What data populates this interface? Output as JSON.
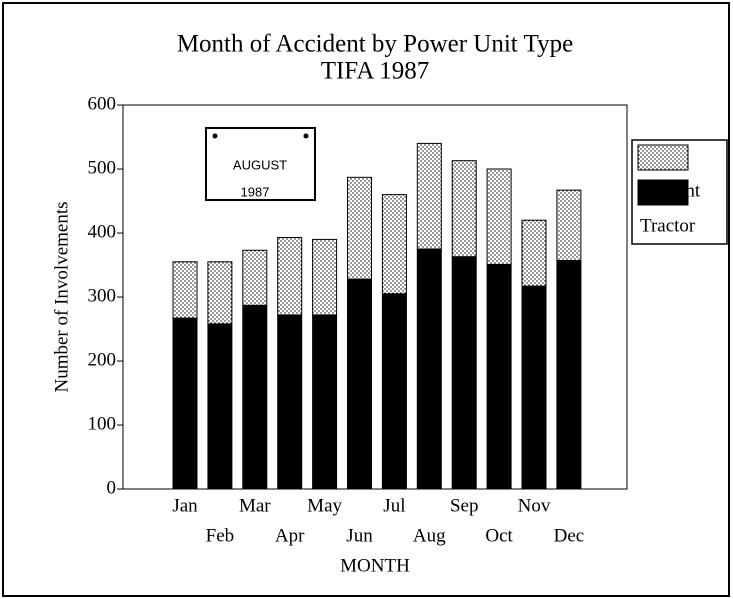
{
  "chart_data": {
    "type": "bar",
    "stacked": true,
    "title": "Month of Accident by Power Unit Type",
    "subtitle": "TIFA 1987",
    "x_label": "MONTH",
    "y_label": "Number of Involvements",
    "categories": [
      "Jan",
      "Feb",
      "Mar",
      "Apr",
      "May",
      "Jun",
      "Jul",
      "Aug",
      "Sep",
      "Oct",
      "Nov",
      "Dec"
    ],
    "series": [
      {
        "name": "Straight",
        "color": "#ffffff",
        "pattern": "dotted",
        "values": [
          88,
          97,
          86,
          121,
          118,
          159,
          155,
          165,
          150,
          149,
          103,
          110
        ]
      },
      {
        "name": "Tractor",
        "color": "#000000",
        "values": [
          267,
          258,
          287,
          272,
          272,
          328,
          305,
          375,
          363,
          351,
          317,
          357
        ]
      }
    ],
    "ylim": [
      0,
      600
    ],
    "yticks": [
      0,
      100,
      200,
      300,
      400,
      500,
      600
    ],
    "legend": "right",
    "annotation": [
      "AUGUST",
      "1987"
    ]
  }
}
